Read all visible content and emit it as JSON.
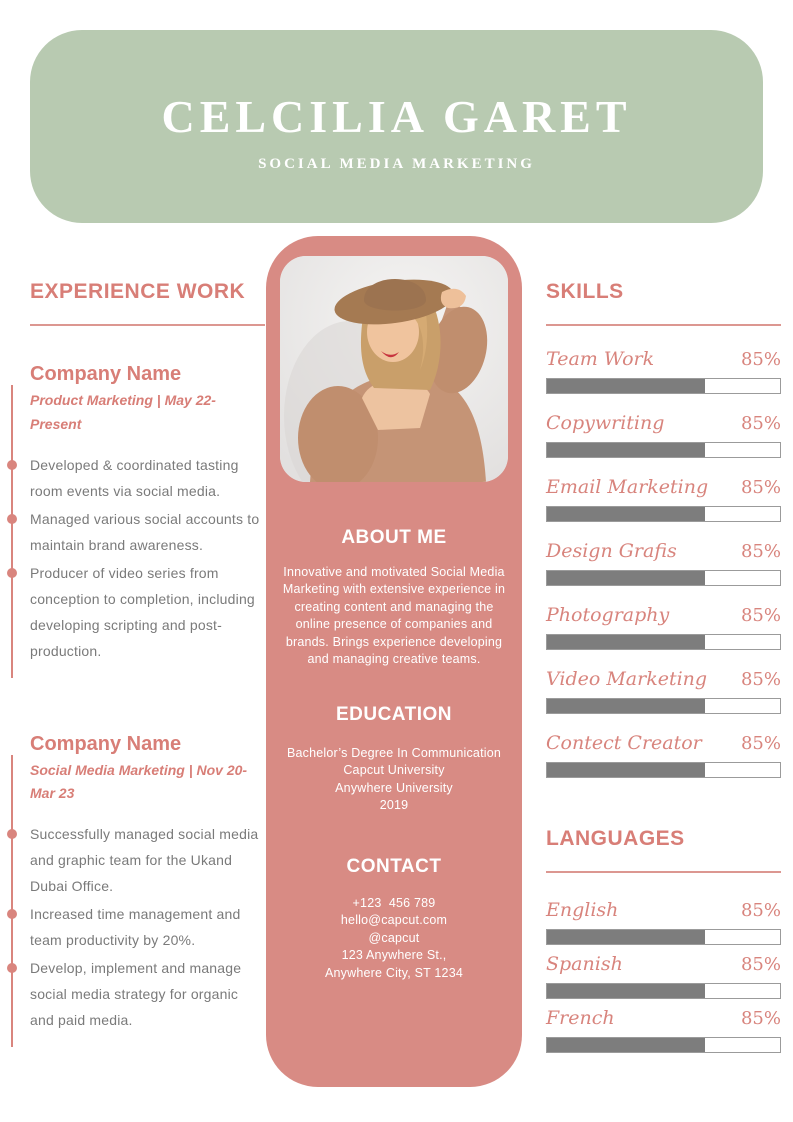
{
  "colors": {
    "header_green": "#b8cab1",
    "panel_pink": "#d88b84",
    "accent_pink": "#d87e77",
    "bullet_dot_pink": "#d9857e",
    "bar_fill_gray": "#7d7d7d",
    "body_text_gray": "#7a7a7a",
    "white": "#ffffff"
  },
  "header": {
    "name": "CELCILIA GARET",
    "subtitle": "SOCIAL MEDIA MARKETING"
  },
  "experience": {
    "title": "EXPERIENCE WORK",
    "jobs": [
      {
        "company": "Company Name",
        "role_dates": "Product Marketing | May 22-Present",
        "bullets": [
          "Developed & coordinated tasting room events via social media.",
          "Managed various social accounts to maintain brand awareness.",
          "Producer of video series from conception to completion, including developing scripting and post-production."
        ]
      },
      {
        "company": "Company Name",
        "role_dates": "Social Media Marketing | Nov 20-Mar 23",
        "bullets": [
          "Successfully managed social media and graphic team for the Ukand Dubai Office.",
          "Increased time management and team productivity by 20%.",
          "Develop, implement and manage social media strategy for organic and paid media."
        ]
      }
    ]
  },
  "photo": {
    "alt": "portrait-photo"
  },
  "about": {
    "title": "ABOUT ME",
    "text": "Innovative and motivated Social Media Marketing with extensive experience in creating content and managing the online presence of companies and brands. Brings experience developing and managing creative teams."
  },
  "education": {
    "title": "EDUCATION",
    "lines": [
      "Bachelor’s Degree In Communication",
      "Capcut University",
      "Anywhere University",
      "2019"
    ]
  },
  "contact": {
    "title": "CONTACT",
    "lines": [
      "+123  456 789",
      "hello@capcut.com",
      "@capcut",
      "123 Anywhere St.,",
      "Anywhere City, ST 1234"
    ]
  },
  "skills": {
    "title": "SKILLS",
    "items": [
      {
        "name": "Team Work",
        "percent": "85%",
        "fill": 68
      },
      {
        "name": "Copywriting",
        "percent": "85%",
        "fill": 68
      },
      {
        "name": "Email Marketing",
        "percent": "85%",
        "fill": 68
      },
      {
        "name": "Design Grafis",
        "percent": "85%",
        "fill": 68
      },
      {
        "name": "Photography",
        "percent": "85%",
        "fill": 68
      },
      {
        "name": "Video Marketing",
        "percent": "85%",
        "fill": 68
      },
      {
        "name": "Contect Creator",
        "percent": "85%",
        "fill": 68
      }
    ]
  },
  "languages": {
    "title": "LANGUAGES",
    "items": [
      {
        "name": "English",
        "percent": "85%",
        "fill": 68
      },
      {
        "name": "Spanish",
        "percent": "85%",
        "fill": 68
      },
      {
        "name": "French",
        "percent": "85%",
        "fill": 68
      }
    ]
  }
}
